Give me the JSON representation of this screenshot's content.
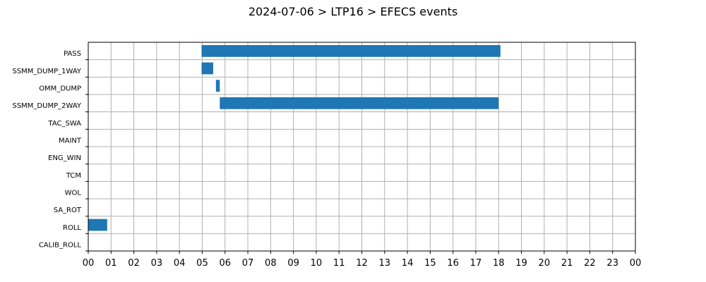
{
  "chart_data": {
    "type": "bar",
    "orientation": "horizontal-gantt",
    "title": "2024-07-06 > LTP16 > EFECS events",
    "xlabel": "",
    "ylabel": "",
    "x_unit": "hour of day",
    "xlim": [
      0,
      24
    ],
    "x_ticks": [
      "00",
      "01",
      "02",
      "03",
      "04",
      "05",
      "06",
      "07",
      "08",
      "09",
      "10",
      "11",
      "12",
      "13",
      "14",
      "15",
      "16",
      "17",
      "18",
      "19",
      "20",
      "21",
      "22",
      "23",
      "00"
    ],
    "categories": [
      "PASS",
      "SSMM_DUMP_1WAY",
      "OMM_DUMP",
      "SSMM_DUMP_2WAY",
      "TAC_SWA",
      "MAINT",
      "ENG_WIN",
      "TCM",
      "WOL",
      "SA_ROT",
      "ROLL",
      "CALIB_ROLL"
    ],
    "series": [
      {
        "color": "#1f77b4",
        "events": [
          {
            "category": "PASS",
            "start": 4.97,
            "end": 18.08
          },
          {
            "category": "SSMM_DUMP_1WAY",
            "start": 4.97,
            "end": 5.48
          },
          {
            "category": "OMM_DUMP",
            "start": 5.6,
            "end": 5.77
          },
          {
            "category": "SSMM_DUMP_2WAY",
            "start": 5.77,
            "end": 18.0
          },
          {
            "category": "ROLL",
            "start": 0.0,
            "end": 0.83
          }
        ]
      }
    ],
    "grid": true,
    "legend": "none"
  }
}
